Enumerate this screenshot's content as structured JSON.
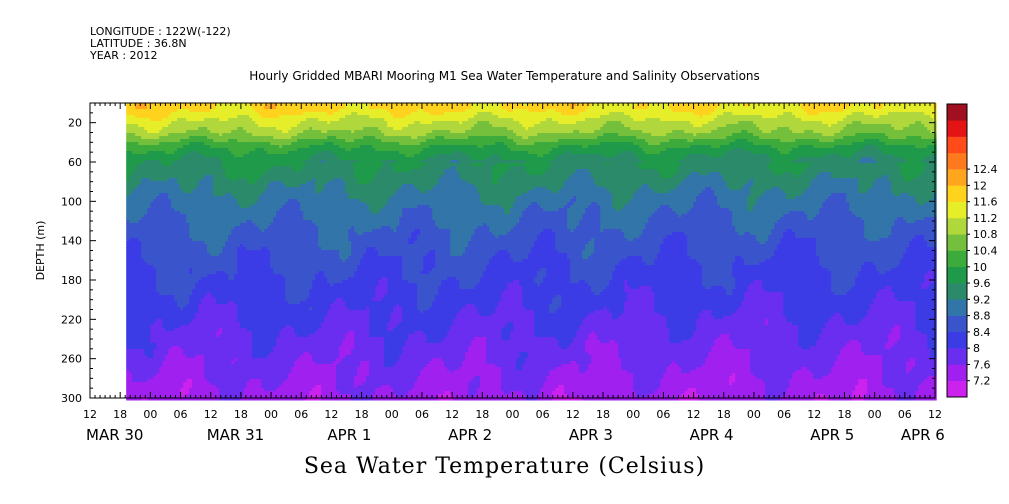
{
  "header": {
    "longitude": "LONGITUDE : 122W(-122)",
    "latitude": "LATITUDE : 36.8N",
    "year": "YEAR : 2012"
  },
  "title": "Hourly Gridded MBARI Mooring M1 Sea Water Temperature and Salinity Observations",
  "variable_title": "Sea Water Temperature (Celsius)",
  "chart_data": {
    "type": "heatmap",
    "title": "Hourly Gridded MBARI Mooring M1 Sea Water Temperature and Salinity Observations",
    "xlabel": "",
    "ylabel": "DEPTH (m)",
    "colorbar_label": "Sea Water Temperature (Celsius)",
    "y_range": [
      0,
      300
    ],
    "y_reversed": true,
    "y_ticks": [
      20,
      60,
      100,
      140,
      180,
      220,
      260,
      300
    ],
    "x_hour_labels": [
      "12",
      "18",
      "00",
      "06",
      "12",
      "18",
      "00",
      "06",
      "12",
      "18",
      "00",
      "06",
      "12",
      "18",
      "00",
      "06",
      "12",
      "18",
      "00",
      "06",
      "12",
      "18",
      "00",
      "06",
      "12",
      "18",
      "00",
      "06",
      "12"
    ],
    "x_date_labels": [
      {
        "label": "MAR 30",
        "hour_index": 0
      },
      {
        "label": "MAR 31",
        "hour_index": 4
      },
      {
        "label": "APR  1",
        "hour_index": 8
      },
      {
        "label": "APR  2",
        "hour_index": 12
      },
      {
        "label": "APR  3",
        "hour_index": 16
      },
      {
        "label": "APR  4",
        "hour_index": 20
      },
      {
        "label": "APR  5",
        "hour_index": 24
      },
      {
        "label": "APR  6",
        "hour_index": 27
      }
    ],
    "data_start_hour_index": 1.2,
    "color_levels": [
      7.2,
      7.6,
      8,
      8.4,
      8.8,
      9.2,
      9.6,
      10,
      10.4,
      10.8,
      11.2,
      11.6,
      12,
      12.4
    ],
    "colorbar_tick_labels": [
      "7.2",
      "7.6",
      "8",
      "8.4",
      "8.8",
      "9.2",
      "9.6",
      "10",
      "10.4",
      "10.8",
      "11.2",
      "11.6",
      "12",
      "12.4"
    ],
    "colors": [
      "#cc22ee",
      "#a020f0",
      "#6a2ef0",
      "#3c3ce6",
      "#3a55cc",
      "#3275a8",
      "#2a8a6a",
      "#1e9a4a",
      "#3cab3c",
      "#74c03c",
      "#b0d83c",
      "#e6ee2a",
      "#ffd21e",
      "#ffa51e",
      "#ff7a1e",
      "#ff4a1a",
      "#e41414",
      "#a0101e"
    ],
    "depth_profile": [
      {
        "depth": 5,
        "temperature": 11.8
      },
      {
        "depth": 20,
        "temperature": 11.2
      },
      {
        "depth": 30,
        "temperature": 10.9
      },
      {
        "depth": 45,
        "temperature": 10.1
      },
      {
        "depth": 60,
        "temperature": 9.6
      },
      {
        "depth": 100,
        "temperature": 9.0
      },
      {
        "depth": 140,
        "temperature": 8.6
      },
      {
        "depth": 180,
        "temperature": 8.3
      },
      {
        "depth": 220,
        "temperature": 8.0
      },
      {
        "depth": 260,
        "temperature": 7.7
      },
      {
        "depth": 300,
        "temperature": 7.4
      }
    ]
  }
}
